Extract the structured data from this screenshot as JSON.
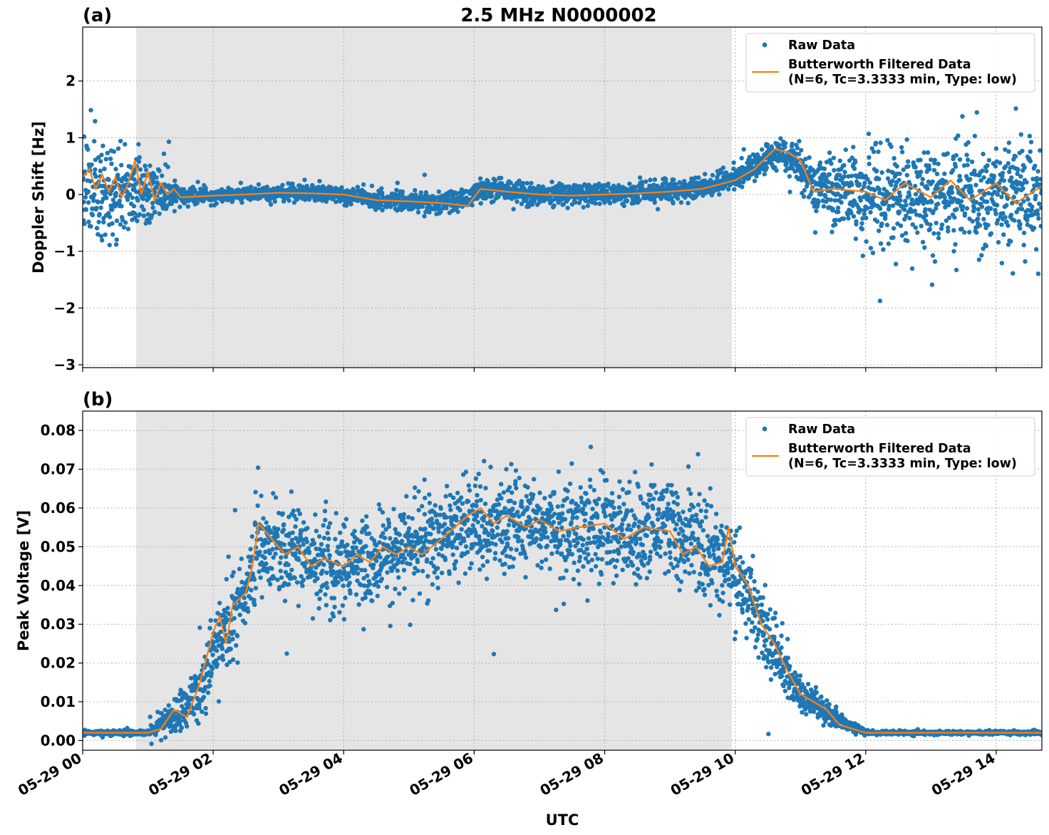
{
  "title": "2.5 MHz N0000002",
  "xlabel": "UTC",
  "colors": {
    "raw": "#1f77b4",
    "filtered": "#ff7f0e",
    "shade": "#e5e5e5",
    "grid": "#b0b0b0"
  },
  "legend": {
    "placement": "top-right",
    "raw_label": "Raw Data",
    "filtered_label_line1": "Butterworth Filtered Data",
    "filtered_label_line2": "(N=6, Tc=3.3333 min, Type: low)"
  },
  "x_axis": {
    "range_hours": [
      0,
      14.7
    ],
    "ticks": [
      {
        "hour": 0,
        "label": "05-29 00"
      },
      {
        "hour": 2,
        "label": "05-29 02"
      },
      {
        "hour": 4,
        "label": "05-29 04"
      },
      {
        "hour": 6,
        "label": "05-29 06"
      },
      {
        "hour": 8,
        "label": "05-29 08"
      },
      {
        "hour": 10,
        "label": "05-29 10"
      },
      {
        "hour": 12,
        "label": "05-29 12"
      },
      {
        "hour": 14,
        "label": "05-29 14"
      }
    ]
  },
  "chart_data": [
    {
      "type": "scatter",
      "panel_label": "(a)",
      "ylabel": "Doppler Shift [Hz]",
      "ylim": [
        -3.05,
        2.95
      ],
      "yticks": [
        -3,
        -2,
        -1,
        0,
        1,
        2
      ],
      "ytick_labels": [
        "−3",
        "−2",
        "−1",
        "0",
        "1",
        "2"
      ],
      "grid": true,
      "shaded_interval_hours": [
        0.82,
        9.95
      ],
      "series": [
        {
          "name": "Raw Data",
          "kind": "scatter",
          "mean_profile": [
            [
              0,
              0.1
            ],
            [
              0.8,
              0.1
            ],
            [
              1.3,
              0.0
            ],
            [
              2.0,
              -0.02
            ],
            [
              3.0,
              0.03
            ],
            [
              4.0,
              0.0
            ],
            [
              4.5,
              -0.1
            ],
            [
              5.3,
              -0.15
            ],
            [
              5.9,
              -0.1
            ],
            [
              6.1,
              0.1
            ],
            [
              7.0,
              0.0
            ],
            [
              8.0,
              0.0
            ],
            [
              9.0,
              0.05
            ],
            [
              9.6,
              0.15
            ],
            [
              10.0,
              0.3
            ],
            [
              10.4,
              0.55
            ],
            [
              10.7,
              0.75
            ],
            [
              11.0,
              0.5
            ],
            [
              11.2,
              0.1
            ],
            [
              12.0,
              0.0
            ],
            [
              13.0,
              -0.05
            ],
            [
              14.7,
              0.0
            ]
          ],
          "spread_profile": [
            [
              0,
              0.65
            ],
            [
              0.8,
              0.65
            ],
            [
              1.2,
              0.35
            ],
            [
              1.5,
              0.12
            ],
            [
              2.0,
              0.1
            ],
            [
              4.0,
              0.12
            ],
            [
              6.0,
              0.15
            ],
            [
              8.0,
              0.15
            ],
            [
              9.5,
              0.15
            ],
            [
              10.0,
              0.15
            ],
            [
              10.8,
              0.25
            ],
            [
              11.2,
              0.3
            ],
            [
              11.6,
              0.6
            ],
            [
              12.0,
              0.7
            ],
            [
              14.7,
              0.75
            ]
          ]
        },
        {
          "name": "Butterworth Filtered Data (N=6, Tc=3.3333 min, Type: low)",
          "kind": "line",
          "points": [
            [
              0,
              0.3
            ],
            [
              0.1,
              0.45
            ],
            [
              0.2,
              0.1
            ],
            [
              0.3,
              0.35
            ],
            [
              0.4,
              0.05
            ],
            [
              0.5,
              0.3
            ],
            [
              0.6,
              -0.05
            ],
            [
              0.7,
              0.2
            ],
            [
              0.8,
              0.6
            ],
            [
              0.9,
              0.0
            ],
            [
              1.0,
              0.4
            ],
            [
              1.1,
              -0.1
            ],
            [
              1.2,
              0.2
            ],
            [
              1.3,
              0.0
            ],
            [
              1.4,
              0.1
            ],
            [
              1.5,
              -0.05
            ],
            [
              2.0,
              -0.02
            ],
            [
              2.5,
              0.0
            ],
            [
              3.0,
              0.03
            ],
            [
              3.5,
              0.02
            ],
            [
              4.0,
              0.0
            ],
            [
              4.5,
              -0.1
            ],
            [
              5.0,
              -0.12
            ],
            [
              5.5,
              -0.15
            ],
            [
              5.9,
              -0.2
            ],
            [
              6.1,
              0.1
            ],
            [
              6.5,
              0.05
            ],
            [
              7.0,
              0.0
            ],
            [
              7.5,
              -0.02
            ],
            [
              8.0,
              0.0
            ],
            [
              8.5,
              0.02
            ],
            [
              9.0,
              0.05
            ],
            [
              9.5,
              0.1
            ],
            [
              10.0,
              0.25
            ],
            [
              10.3,
              0.45
            ],
            [
              10.6,
              0.8
            ],
            [
              10.8,
              0.75
            ],
            [
              11.0,
              0.6
            ],
            [
              11.2,
              0.05
            ],
            [
              11.5,
              0.1
            ],
            [
              12.0,
              0.05
            ],
            [
              12.3,
              -0.1
            ],
            [
              12.6,
              0.2
            ],
            [
              13.0,
              -0.05
            ],
            [
              13.3,
              0.25
            ],
            [
              13.6,
              -0.1
            ],
            [
              14.0,
              0.2
            ],
            [
              14.3,
              -0.15
            ],
            [
              14.7,
              0.15
            ]
          ]
        }
      ]
    },
    {
      "type": "scatter",
      "panel_label": "(b)",
      "ylabel": "Peak Voltage [V]",
      "ylim": [
        -0.0025,
        0.085
      ],
      "yticks": [
        0.0,
        0.01,
        0.02,
        0.03,
        0.04,
        0.05,
        0.06,
        0.07,
        0.08
      ],
      "ytick_labels": [
        "0.00",
        "0.01",
        "0.02",
        "0.03",
        "0.04",
        "0.05",
        "0.06",
        "0.07",
        "0.08"
      ],
      "grid": true,
      "shaded_interval_hours": [
        0.82,
        9.95
      ],
      "series": [
        {
          "name": "Raw Data",
          "kind": "scatter",
          "mean_profile": [
            [
              0,
              0.002
            ],
            [
              1.0,
              0.002
            ],
            [
              1.2,
              0.004
            ],
            [
              1.5,
              0.008
            ],
            [
              1.8,
              0.014
            ],
            [
              2.0,
              0.022
            ],
            [
              2.2,
              0.03
            ],
            [
              2.5,
              0.038
            ],
            [
              2.7,
              0.05
            ],
            [
              3.0,
              0.05
            ],
            [
              3.5,
              0.046
            ],
            [
              4.0,
              0.045
            ],
            [
              4.5,
              0.047
            ],
            [
              5.0,
              0.05
            ],
            [
              5.5,
              0.052
            ],
            [
              6.0,
              0.056
            ],
            [
              7.0,
              0.056
            ],
            [
              8.0,
              0.055
            ],
            [
              9.0,
              0.054
            ],
            [
              9.5,
              0.05
            ],
            [
              9.9,
              0.045
            ],
            [
              10.1,
              0.042
            ],
            [
              10.4,
              0.03
            ],
            [
              10.7,
              0.02
            ],
            [
              11.0,
              0.012
            ],
            [
              11.5,
              0.006
            ],
            [
              12.0,
              0.002
            ],
            [
              14.7,
              0.002
            ]
          ],
          "spread_profile": [
            [
              0,
              0.0004
            ],
            [
              1.0,
              0.0005
            ],
            [
              1.3,
              0.004
            ],
            [
              2.0,
              0.008
            ],
            [
              2.5,
              0.01
            ],
            [
              3.0,
              0.01
            ],
            [
              6.0,
              0.01
            ],
            [
              9.9,
              0.01
            ],
            [
              10.5,
              0.007
            ],
            [
              11.0,
              0.004
            ],
            [
              11.5,
              0.002
            ],
            [
              12.0,
              0.0004
            ],
            [
              14.7,
              0.0004
            ]
          ]
        },
        {
          "name": "Butterworth Filtered Data (N=6, Tc=3.3333 min, Type: low)",
          "kind": "line",
          "points": [
            [
              0,
              0.002
            ],
            [
              0.5,
              0.002
            ],
            [
              1.0,
              0.002
            ],
            [
              1.2,
              0.003
            ],
            [
              1.4,
              0.008
            ],
            [
              1.6,
              0.006
            ],
            [
              1.8,
              0.015
            ],
            [
              2.0,
              0.028
            ],
            [
              2.1,
              0.032
            ],
            [
              2.2,
              0.025
            ],
            [
              2.3,
              0.035
            ],
            [
              2.5,
              0.038
            ],
            [
              2.6,
              0.045
            ],
            [
              2.7,
              0.056
            ],
            [
              2.9,
              0.052
            ],
            [
              3.1,
              0.048
            ],
            [
              3.3,
              0.05
            ],
            [
              3.5,
              0.045
            ],
            [
              3.7,
              0.047
            ],
            [
              4.0,
              0.045
            ],
            [
              4.2,
              0.048
            ],
            [
              4.4,
              0.046
            ],
            [
              4.6,
              0.05
            ],
            [
              4.8,
              0.048
            ],
            [
              5.0,
              0.05
            ],
            [
              5.2,
              0.048
            ],
            [
              5.5,
              0.052
            ],
            [
              5.7,
              0.055
            ],
            [
              5.9,
              0.058
            ],
            [
              6.1,
              0.06
            ],
            [
              6.3,
              0.056
            ],
            [
              6.5,
              0.058
            ],
            [
              6.8,
              0.055
            ],
            [
              7.0,
              0.057
            ],
            [
              7.3,
              0.054
            ],
            [
              7.6,
              0.055
            ],
            [
              8.0,
              0.056
            ],
            [
              8.3,
              0.052
            ],
            [
              8.6,
              0.055
            ],
            [
              9.0,
              0.054
            ],
            [
              9.2,
              0.048
            ],
            [
              9.4,
              0.05
            ],
            [
              9.6,
              0.045
            ],
            [
              9.8,
              0.046
            ],
            [
              9.9,
              0.055
            ],
            [
              10.0,
              0.045
            ],
            [
              10.2,
              0.04
            ],
            [
              10.4,
              0.03
            ],
            [
              10.6,
              0.025
            ],
            [
              10.8,
              0.018
            ],
            [
              11.0,
              0.012
            ],
            [
              11.2,
              0.01
            ],
            [
              11.4,
              0.008
            ],
            [
              11.6,
              0.004
            ],
            [
              12.0,
              0.002
            ],
            [
              14.7,
              0.002
            ]
          ]
        }
      ]
    }
  ]
}
